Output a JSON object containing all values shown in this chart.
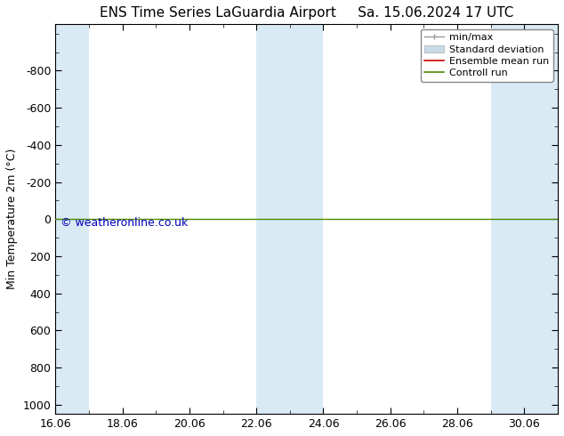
{
  "title": "ENS Time Series LaGuardia Airport",
  "title2": "Sa. 15.06.2024 17 UTC",
  "ylabel": "Min Temperature 2m (°C)",
  "ylim_bottom": 1050,
  "ylim_top": -1050,
  "yticks": [
    -800,
    -600,
    -400,
    -200,
    0,
    200,
    400,
    600,
    800,
    1000
  ],
  "xtick_labels": [
    "16.06",
    "18.06",
    "20.06",
    "22.06",
    "24.06",
    "26.06",
    "28.06",
    "30.06"
  ],
  "xtick_positions": [
    0,
    2,
    4,
    6,
    8,
    10,
    12,
    14
  ],
  "band_starts": [
    0,
    6,
    13
  ],
  "band_ends": [
    1,
    8,
    15
  ],
  "band_color": "#daeaf5",
  "control_run_y": 0,
  "control_run_color": "#4c8c00",
  "ensemble_mean_color": "#cc0000",
  "bg_color": "#ffffff",
  "copyright_text": "© weatheronline.co.uk",
  "copyright_color": "#0000bb",
  "legend_items": [
    "min/max",
    "Standard deviation",
    "Ensemble mean run",
    "Controll run"
  ],
  "legend_colors": [
    "#999999",
    "#c8dce8",
    "#cc0000",
    "#4c8c00"
  ],
  "title_fontsize": 11,
  "axis_fontsize": 9,
  "legend_fontsize": 8
}
